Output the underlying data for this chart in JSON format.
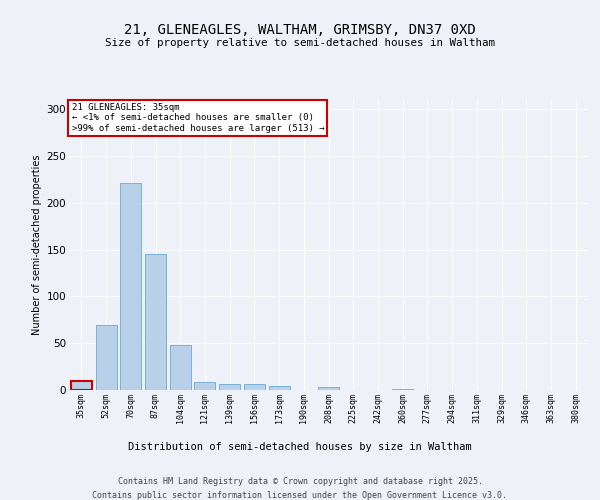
{
  "title1": "21, GLENEAGLES, WALTHAM, GRIMSBY, DN37 0XD",
  "title2": "Size of property relative to semi-detached houses in Waltham",
  "xlabel": "Distribution of semi-detached houses by size in Waltham",
  "ylabel": "Number of semi-detached properties",
  "categories": [
    "35sqm",
    "52sqm",
    "70sqm",
    "87sqm",
    "104sqm",
    "121sqm",
    "139sqm",
    "156sqm",
    "173sqm",
    "190sqm",
    "208sqm",
    "225sqm",
    "242sqm",
    "260sqm",
    "277sqm",
    "294sqm",
    "311sqm",
    "329sqm",
    "346sqm",
    "363sqm",
    "380sqm"
  ],
  "values": [
    10,
    70,
    221,
    145,
    48,
    9,
    6,
    6,
    4,
    0,
    3,
    0,
    0,
    1,
    0,
    0,
    0,
    0,
    0,
    0,
    0
  ],
  "bar_color": "#b8d0e8",
  "bar_edge_color": "#6aaad4",
  "annotation_title": "21 GLENEAGLES: 35sqm",
  "annotation_line1": "← <1% of semi-detached houses are smaller (0)",
  "annotation_line2": ">99% of semi-detached houses are larger (513) →",
  "annotation_box_color": "#ffffff",
  "annotation_box_edge": "#cc0000",
  "ylim": [
    0,
    310
  ],
  "yticks": [
    0,
    50,
    100,
    150,
    200,
    250,
    300
  ],
  "footer1": "Contains HM Land Registry data © Crown copyright and database right 2025.",
  "footer2": "Contains public sector information licensed under the Open Government Licence v3.0.",
  "bg_color": "#eef2f8",
  "plot_bg_color": "#eef2f8"
}
